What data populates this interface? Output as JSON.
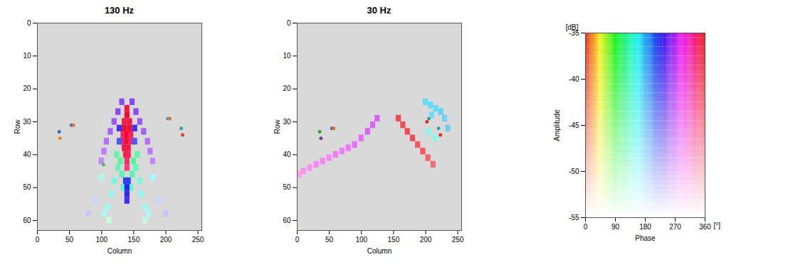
{
  "chart_data": [
    {
      "type": "heatmap",
      "title": "130 Hz",
      "x_label": "Column",
      "y_label": "Row",
      "xlim": [
        0,
        256
      ],
      "xticks": [
        0,
        50,
        100,
        150,
        200,
        250
      ],
      "ylim": [
        63,
        0
      ],
      "yticks": [
        0,
        10,
        20,
        30,
        40,
        50,
        60
      ],
      "cells": [
        [
          140,
          26,
          345,
          -36
        ],
        [
          140,
          28,
          350,
          -35
        ],
        [
          136,
          30,
          345,
          -36
        ],
        [
          144,
          30,
          345,
          -36
        ],
        [
          136,
          32,
          350,
          -35
        ],
        [
          144,
          32,
          350,
          -35
        ],
        [
          134,
          34,
          340,
          -37
        ],
        [
          140,
          34,
          350,
          -35
        ],
        [
          146,
          34,
          340,
          -37
        ],
        [
          134,
          36,
          340,
          -37
        ],
        [
          140,
          36,
          350,
          -35
        ],
        [
          146,
          36,
          340,
          -37
        ],
        [
          136,
          38,
          345,
          -36
        ],
        [
          142,
          38,
          345,
          -36
        ],
        [
          138,
          40,
          345,
          -37
        ],
        [
          142,
          40,
          345,
          -37
        ],
        [
          140,
          42,
          340,
          -38
        ],
        [
          140,
          44,
          335,
          -39
        ],
        [
          132,
          24,
          250,
          -40
        ],
        [
          126,
          27,
          250,
          -40
        ],
        [
          120,
          30,
          255,
          -41
        ],
        [
          114,
          33,
          255,
          -42
        ],
        [
          108,
          36,
          260,
          -43
        ],
        [
          104,
          39,
          260,
          -44
        ],
        [
          100,
          42,
          260,
          -45
        ],
        [
          148,
          24,
          250,
          -40
        ],
        [
          154,
          27,
          250,
          -40
        ],
        [
          160,
          30,
          255,
          -41
        ],
        [
          166,
          33,
          255,
          -42
        ],
        [
          172,
          36,
          260,
          -43
        ],
        [
          176,
          39,
          260,
          -44
        ],
        [
          180,
          42,
          260,
          -45
        ],
        [
          128,
          32,
          230,
          -38
        ],
        [
          152,
          32,
          230,
          -38
        ],
        [
          128,
          36,
          220,
          -40
        ],
        [
          152,
          36,
          220,
          -40
        ],
        [
          124,
          40,
          120,
          -42
        ],
        [
          130,
          42,
          120,
          -41
        ],
        [
          150,
          42,
          120,
          -41
        ],
        [
          156,
          40,
          120,
          -42
        ],
        [
          126,
          44,
          130,
          -42
        ],
        [
          132,
          46,
          130,
          -41
        ],
        [
          148,
          46,
          130,
          -41
        ],
        [
          154,
          44,
          130,
          -42
        ],
        [
          120,
          48,
          140,
          -44
        ],
        [
          134,
          50,
          140,
          -42
        ],
        [
          146,
          50,
          140,
          -42
        ],
        [
          160,
          48,
          140,
          -44
        ],
        [
          116,
          52,
          150,
          -46
        ],
        [
          162,
          52,
          150,
          -46
        ],
        [
          110,
          56,
          150,
          -47
        ],
        [
          168,
          56,
          150,
          -47
        ],
        [
          104,
          58,
          160,
          -48
        ],
        [
          174,
          58,
          160,
          -48
        ],
        [
          138,
          48,
          220,
          -38
        ],
        [
          142,
          48,
          220,
          -38
        ],
        [
          140,
          50,
          225,
          -37
        ],
        [
          140,
          52,
          230,
          -37
        ],
        [
          140,
          54,
          230,
          -38
        ],
        [
          100,
          47,
          140,
          -48
        ],
        [
          180,
          47,
          160,
          -48
        ],
        [
          90,
          54,
          200,
          -50
        ],
        [
          190,
          54,
          200,
          -50
        ],
        [
          112,
          60,
          120,
          -50
        ],
        [
          168,
          60,
          120,
          -50
        ],
        [
          80,
          58,
          240,
          -50
        ],
        [
          200,
          58,
          240,
          -50
        ]
      ],
      "points": {
        "x": [
          34,
          35,
          53,
          56,
          203,
          206,
          224,
          226,
          103
        ],
        "y": [
          33,
          35,
          31,
          31,
          29,
          29,
          32,
          34,
          43
        ],
        "colors": [
          "#3a6fc4",
          "#e88a2a",
          "#3a6fc4",
          "#e07030",
          "#3a9fd0",
          "#e07030",
          "#3aa0a0",
          "#d84030",
          "#60b060"
        ]
      }
    },
    {
      "type": "heatmap",
      "title": "30 Hz",
      "x_label": "Column",
      "y_label": "Row",
      "xlim": [
        0,
        256
      ],
      "xticks": [
        0,
        50,
        100,
        150,
        200,
        250
      ],
      "ylim": [
        63,
        0
      ],
      "yticks": [
        0,
        10,
        20,
        30,
        40,
        50,
        60
      ],
      "cells": [
        [
          125,
          29,
          280,
          -42
        ],
        [
          118,
          31,
          280,
          -42
        ],
        [
          110,
          33,
          280,
          -42
        ],
        [
          100,
          35,
          285,
          -43
        ],
        [
          90,
          37,
          285,
          -43
        ],
        [
          80,
          38,
          285,
          -44
        ],
        [
          70,
          39,
          290,
          -44
        ],
        [
          60,
          40,
          290,
          -44
        ],
        [
          50,
          41,
          290,
          -45
        ],
        [
          40,
          42,
          295,
          -45
        ],
        [
          30,
          43,
          295,
          -45
        ],
        [
          20,
          44,
          300,
          -46
        ],
        [
          10,
          45,
          300,
          -46
        ],
        [
          4,
          46,
          300,
          -47
        ],
        [
          158,
          29,
          355,
          -40
        ],
        [
          165,
          31,
          355,
          -40
        ],
        [
          172,
          33,
          355,
          -40
        ],
        [
          180,
          35,
          355,
          -40
        ],
        [
          188,
          37,
          355,
          -41
        ],
        [
          196,
          39,
          355,
          -41
        ],
        [
          204,
          41,
          355,
          -42
        ],
        [
          212,
          43,
          355,
          -43
        ],
        [
          200,
          24,
          170,
          -42
        ],
        [
          208,
          25,
          170,
          -42
        ],
        [
          216,
          26,
          170,
          -42
        ],
        [
          224,
          27,
          175,
          -42
        ],
        [
          230,
          29,
          175,
          -43
        ],
        [
          235,
          32,
          180,
          -43
        ],
        [
          210,
          28,
          170,
          -43
        ],
        [
          205,
          33,
          150,
          -45
        ],
        [
          215,
          35,
          150,
          -45
        ]
      ],
      "points": {
        "x": [
          35,
          37,
          54,
          57,
          202,
          205,
          220,
          223
        ],
        "y": [
          33,
          35,
          32,
          32,
          30,
          29,
          32,
          34
        ],
        "colors": [
          "#40a040",
          "#7040a0",
          "#3a6fc4",
          "#e07030",
          "#d83030",
          "#40a0a0",
          "#3aa0a0",
          "#d83030"
        ]
      }
    },
    {
      "type": "colormap",
      "x_label": "Phase",
      "y_label": "Amplitude",
      "xlim": [
        0,
        360
      ],
      "xticks": [
        0,
        90,
        180,
        270,
        360
      ],
      "ylim": [
        -55,
        -35
      ],
      "yticks": [
        -35,
        -40,
        -45,
        -50,
        -55
      ],
      "annotations": [
        "[dB]",
        "[°]"
      ]
    }
  ]
}
